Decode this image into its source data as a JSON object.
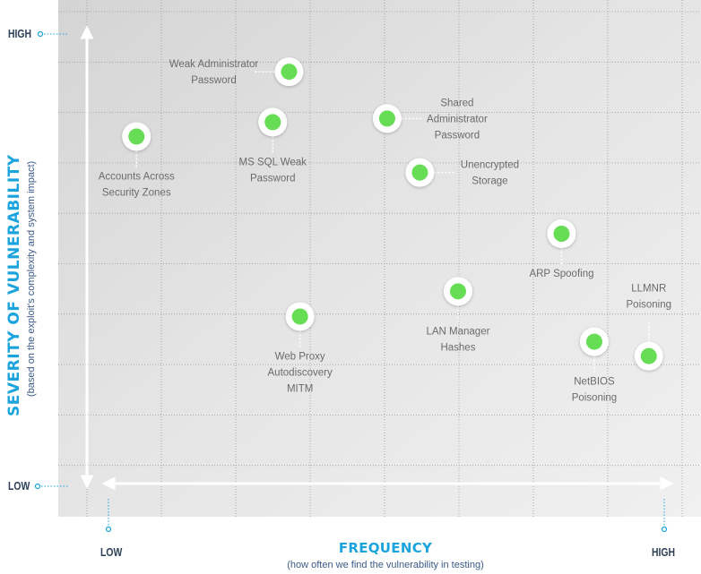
{
  "chart_data": {
    "type": "scatter",
    "title": "",
    "ylabel": "SEVERITY OF VULNERABILITY",
    "ylabel_sub": "(based on the exploit's complexity and system impact)",
    "xlabel": "FREQUENCY",
    "xlabel_sub": "(how often we find the vulnerability in testing)",
    "y_ticks": {
      "low": "LOW",
      "high": "HIGH"
    },
    "x_ticks": {
      "low": "LOW",
      "high": "HIGH"
    },
    "xlim": [
      0,
      100
    ],
    "ylim": [
      0,
      100
    ],
    "grid": true,
    "colors": {
      "point": "#66dd55",
      "axis_text": "#1aa3dd",
      "background": "#e8e8e8"
    },
    "points": [
      {
        "label": [
          "Weak Administrator",
          "Password"
        ],
        "x": 31,
        "y": 95,
        "label_pos": "left"
      },
      {
        "label": [
          "Shared",
          "Administrator",
          "Password"
        ],
        "x": 49,
        "y": 82,
        "label_pos": "right"
      },
      {
        "label": [
          "MS SQL Weak",
          "Password"
        ],
        "x": 28,
        "y": 81,
        "label_pos": "below"
      },
      {
        "label": [
          "Accounts Across",
          "Security Zones"
        ],
        "x": 3,
        "y": 77,
        "label_pos": "below"
      },
      {
        "label": [
          "Unencrypted",
          "Storage"
        ],
        "x": 55,
        "y": 67,
        "label_pos": "right"
      },
      {
        "label": [
          "ARP Spoofing"
        ],
        "x": 81,
        "y": 50,
        "label_pos": "below"
      },
      {
        "label": [
          "LAN Manager",
          "Hashes"
        ],
        "x": 62,
        "y": 34,
        "label_pos": "below"
      },
      {
        "label": [
          "Web Proxy",
          "Autodiscovery",
          "MITM"
        ],
        "x": 33,
        "y": 27,
        "label_pos": "below"
      },
      {
        "label": [
          "NetBIOS",
          "Poisoning"
        ],
        "x": 87,
        "y": 20,
        "label_pos": "below"
      },
      {
        "label": [
          "LLMNR",
          "Poisoning"
        ],
        "x": 97,
        "y": 16,
        "label_pos": "above"
      }
    ]
  }
}
